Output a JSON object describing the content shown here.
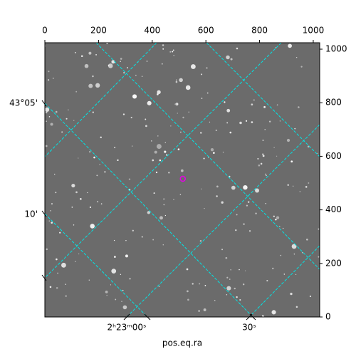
{
  "chart_data": {
    "type": "image",
    "x_label": "pos.eq.ra",
    "xlim": [
      0,
      1024
    ],
    "ylim": [
      0,
      1024
    ],
    "xticks": [
      0,
      200,
      400,
      600,
      800,
      1000
    ],
    "yticks": [
      0,
      200,
      400,
      600,
      800,
      1000
    ],
    "dec_ticks": [
      "43°05'",
      "10'"
    ],
    "ra_ticks": [
      "2ʰ23ᵐ00ˢ",
      "30ˢ"
    ],
    "marker": {
      "x": 514,
      "y": 516,
      "color": "#e600e6"
    }
  }
}
